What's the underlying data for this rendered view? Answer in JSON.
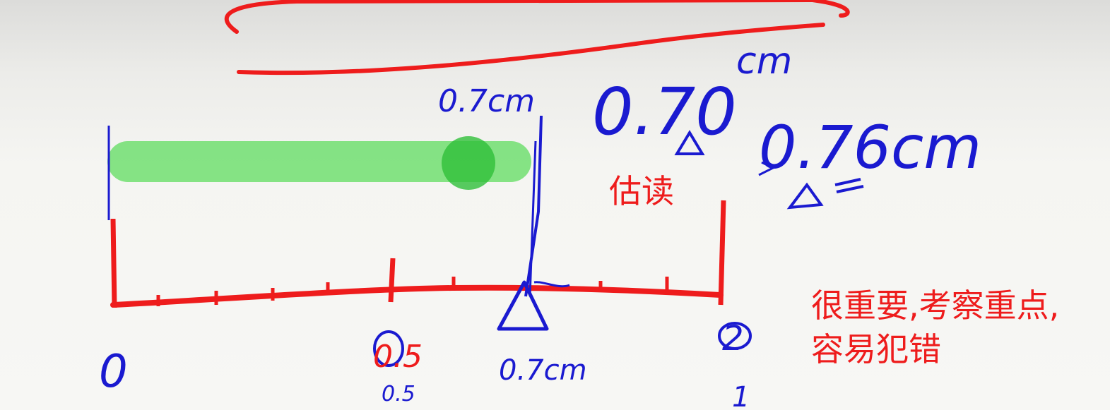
{
  "colors": {
    "red_ink": "#ee1c1c",
    "blue_ink": "#1a1ad0",
    "green_highlight": "#5fdc5f",
    "green_dot": "#2fbf3a"
  },
  "annotations": {
    "estimate_label": "估读",
    "important_note_line1": "很重要,考察重点,",
    "important_note_line2": "容易犯错"
  },
  "handwriting": {
    "reading_top": "0.7cm",
    "reading_bottom": "0.7cm",
    "reading_two_decimals_digits": "0.70",
    "reading_two_decimals_unit": "cm",
    "reading_alt": "0.76cm",
    "half_mark": "0.5",
    "scale_zero": "0",
    "scale_half": "0.5",
    "scale_end": "1",
    "scale_end_circled": "2"
  }
}
